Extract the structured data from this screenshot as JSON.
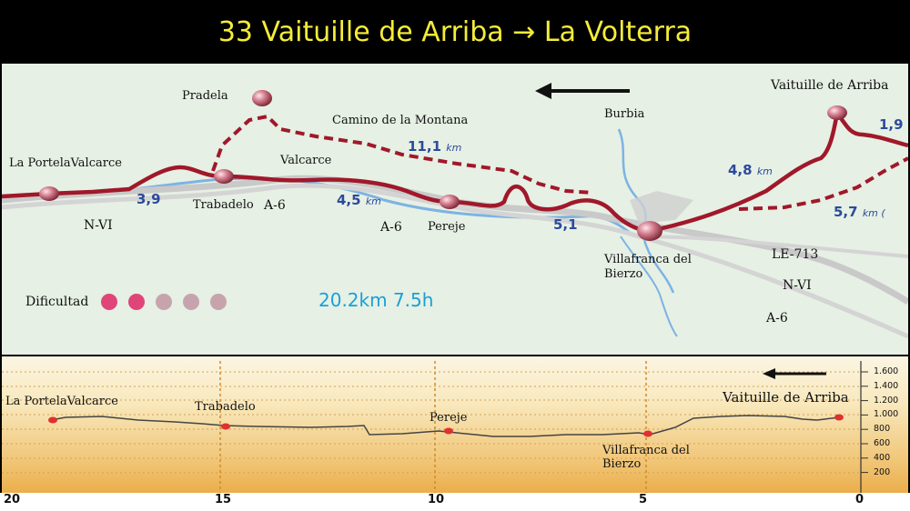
{
  "title": "33 Vaituille de Arriba → La Volterra",
  "map": {
    "places": {
      "vaituille": "Vaituille de Arriba",
      "pradela": "Pradela",
      "camino": "Camino de la Montana",
      "burbia": "Burbia",
      "portela": "La PortelaValcarce",
      "valcarce": "Valcarce",
      "trabadelo": "Trabadelo",
      "pereje": "Pereje",
      "villafranca": "Villafranca del\nBierzo"
    },
    "roads": {
      "a6_1": "A-6",
      "a6_2": "A-6",
      "a6_3": "A-6",
      "nvi_1": "N-VI",
      "nvi_2": "N-VI",
      "le713": "LE-713"
    },
    "distances": [
      {
        "value": "1,9",
        "unit": ""
      },
      {
        "value": "4,8",
        "unit": "km"
      },
      {
        "value": "5,7",
        "unit": "km ("
      },
      {
        "value": "11,1",
        "unit": "km"
      },
      {
        "value": "4,5",
        "unit": "km"
      },
      {
        "value": "3,9",
        "unit": ""
      },
      {
        "value": "5,1",
        "unit": ""
      }
    ],
    "difficulty_label": "Dificultad",
    "difficulty_level": 2,
    "difficulty_max": 5,
    "summary": "20.2km 7.5h",
    "colors": {
      "route": "#a0182a",
      "river": "#7db3e3",
      "road": "#c9c9c9",
      "distance": "#2d4a9b",
      "summary": "#1aa0d8"
    }
  },
  "profile": {
    "labels": {
      "portela": "La PortelaValcarce",
      "trabadelo": "Trabadelo",
      "pereje": "Pereje",
      "villafranca": "Villafranca del\nBierzo",
      "vaituille": "Vaituille de Arriba"
    },
    "y_ticks": [
      "1.600",
      "1.400",
      "1.200",
      "1.000",
      "800",
      "600",
      "400",
      "200"
    ],
    "x_ticks": [
      "20",
      "15",
      "10",
      "5",
      "0"
    ]
  }
}
